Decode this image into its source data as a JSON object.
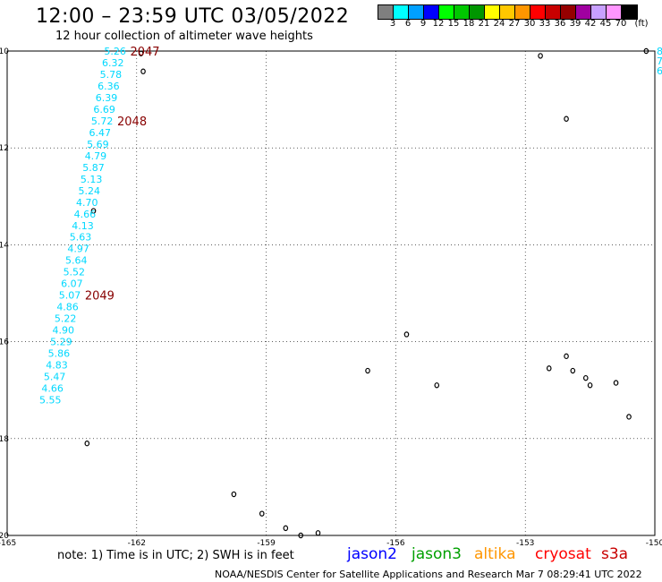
{
  "header": {
    "title": "12:00 – 23:59 UTC 03/05/2022",
    "subtitle": "12 hour collection of altimeter wave heights"
  },
  "legend": {
    "unit": "(ft)",
    "bins": [
      {
        "label": "3",
        "color": "#7f7f7f"
      },
      {
        "label": "6",
        "color": "#00ffff"
      },
      {
        "label": "9",
        "color": "#00a0ff"
      },
      {
        "label": "12",
        "color": "#0000ff"
      },
      {
        "label": "15",
        "color": "#00ff00"
      },
      {
        "label": "18",
        "color": "#00c800"
      },
      {
        "label": "21",
        "color": "#009600"
      },
      {
        "label": "24",
        "color": "#ffff00"
      },
      {
        "label": "27",
        "color": "#ffc800"
      },
      {
        "label": "30",
        "color": "#ff9600"
      },
      {
        "label": "33",
        "color": "#ff0000"
      },
      {
        "label": "36",
        "color": "#c80000"
      },
      {
        "label": "39",
        "color": "#960000"
      },
      {
        "label": "42",
        "color": "#a000a0"
      },
      {
        "label": "45",
        "color": "#c8a0ff"
      },
      {
        "label": "70",
        "color": "#ff96ff"
      },
      {
        "label": "",
        "color": "#000000"
      }
    ]
  },
  "map": {
    "lon_range": [
      -165,
      -150
    ],
    "lat_range": [
      -20,
      -10
    ],
    "lon_ticks": [
      "-165",
      "-162",
      "-159",
      "-156",
      "-153",
      "-150"
    ],
    "lat_ticks": [
      "-10",
      "-12",
      "-14",
      "-16",
      "-18",
      "-20"
    ],
    "swh_track": [
      {
        "lat": -10.0,
        "lon": -162.5,
        "value": "5.26"
      },
      {
        "lat": -10.24,
        "lon": -162.55,
        "value": "6.32"
      },
      {
        "lat": -10.48,
        "lon": -162.6,
        "value": "5.78"
      },
      {
        "lat": -10.72,
        "lon": -162.65,
        "value": "6.36"
      },
      {
        "lat": -10.96,
        "lon": -162.7,
        "value": "6.39"
      },
      {
        "lat": -11.2,
        "lon": -162.75,
        "value": "6.69"
      },
      {
        "lat": -11.44,
        "lon": -162.8,
        "value": "5.72"
      },
      {
        "lat": -11.68,
        "lon": -162.85,
        "value": "6.47"
      },
      {
        "lat": -11.92,
        "lon": -162.9,
        "value": "5.69"
      },
      {
        "lat": -12.16,
        "lon": -162.95,
        "value": "4.79"
      },
      {
        "lat": -12.4,
        "lon": -163.0,
        "value": "5.87"
      },
      {
        "lat": -12.64,
        "lon": -163.05,
        "value": "5.13"
      },
      {
        "lat": -12.88,
        "lon": -163.1,
        "value": "5.24"
      },
      {
        "lat": -13.12,
        "lon": -163.15,
        "value": "4.70"
      },
      {
        "lat": -13.36,
        "lon": -163.2,
        "value": "4.66"
      },
      {
        "lat": -13.6,
        "lon": -163.25,
        "value": "4.13"
      },
      {
        "lat": -13.84,
        "lon": -163.3,
        "value": "5.63"
      },
      {
        "lat": -14.08,
        "lon": -163.35,
        "value": "4.97"
      },
      {
        "lat": -14.32,
        "lon": -163.4,
        "value": "5.64"
      },
      {
        "lat": -14.56,
        "lon": -163.45,
        "value": "5.52"
      },
      {
        "lat": -14.8,
        "lon": -163.5,
        "value": "6.07"
      },
      {
        "lat": -15.04,
        "lon": -163.55,
        "value": "5.07"
      },
      {
        "lat": -15.28,
        "lon": -163.6,
        "value": "4.86"
      },
      {
        "lat": -15.52,
        "lon": -163.65,
        "value": "5.22"
      },
      {
        "lat": -15.76,
        "lon": -163.7,
        "value": "4.90"
      },
      {
        "lat": -16.0,
        "lon": -163.75,
        "value": "5.29"
      },
      {
        "lat": -16.24,
        "lon": -163.8,
        "value": "5.86"
      },
      {
        "lat": -16.48,
        "lon": -163.85,
        "value": "4.83"
      },
      {
        "lat": -16.72,
        "lon": -163.9,
        "value": "5.47"
      },
      {
        "lat": -16.96,
        "lon": -163.95,
        "value": "4.66"
      },
      {
        "lat": -17.2,
        "lon": -164.0,
        "value": "5.55"
      }
    ],
    "pass_labels": [
      {
        "lat": -10.0,
        "lon": -162.4,
        "value": "2047"
      },
      {
        "lat": -11.44,
        "lon": -162.7,
        "value": "2048"
      },
      {
        "lat": -15.04,
        "lon": -163.45,
        "value": "2049"
      }
    ],
    "edge_values": [
      "8",
      "7",
      "6"
    ],
    "islands": [
      {
        "lat": -10.05,
        "lon": -161.9
      },
      {
        "lat": -10.42,
        "lon": -161.85
      },
      {
        "lat": -13.3,
        "lon": -163.0
      },
      {
        "lat": -18.1,
        "lon": -163.15
      },
      {
        "lat": -19.15,
        "lon": -159.75
      },
      {
        "lat": -19.55,
        "lon": -159.1
      },
      {
        "lat": -19.85,
        "lon": -158.55
      },
      {
        "lat": -19.95,
        "lon": -157.8
      },
      {
        "lat": -20.0,
        "lon": -158.2
      },
      {
        "lat": -10.1,
        "lon": -152.65
      },
      {
        "lat": -11.4,
        "lon": -152.05
      },
      {
        "lat": -15.85,
        "lon": -155.75
      },
      {
        "lat": -16.6,
        "lon": -156.65
      },
      {
        "lat": -16.9,
        "lon": -155.05
      },
      {
        "lat": -16.3,
        "lon": -152.05
      },
      {
        "lat": -16.55,
        "lon": -152.45
      },
      {
        "lat": -16.6,
        "lon": -151.9
      },
      {
        "lat": -16.75,
        "lon": -151.6
      },
      {
        "lat": -16.9,
        "lon": -151.5
      },
      {
        "lat": -16.85,
        "lon": -150.9
      },
      {
        "lat": -17.55,
        "lon": -150.6
      },
      {
        "lat": -10.0,
        "lon": -150.2
      }
    ]
  },
  "footer": {
    "note": "note: 1) Time is in UTC; 2) SWH is in feet",
    "satellites": [
      {
        "name": "jason2",
        "color": "#0000ff"
      },
      {
        "name": "jason3",
        "color": "#00a000"
      },
      {
        "name": "altika",
        "color": "#ff9600"
      },
      {
        "name": "cryosat",
        "color": "#ff0000"
      },
      {
        "name": "s3a",
        "color": "#c80000"
      }
    ],
    "credit": "NOAA/NESDIS Center for Satellite Applications and Research    Mar  7 08:29:41 UTC 2022"
  }
}
